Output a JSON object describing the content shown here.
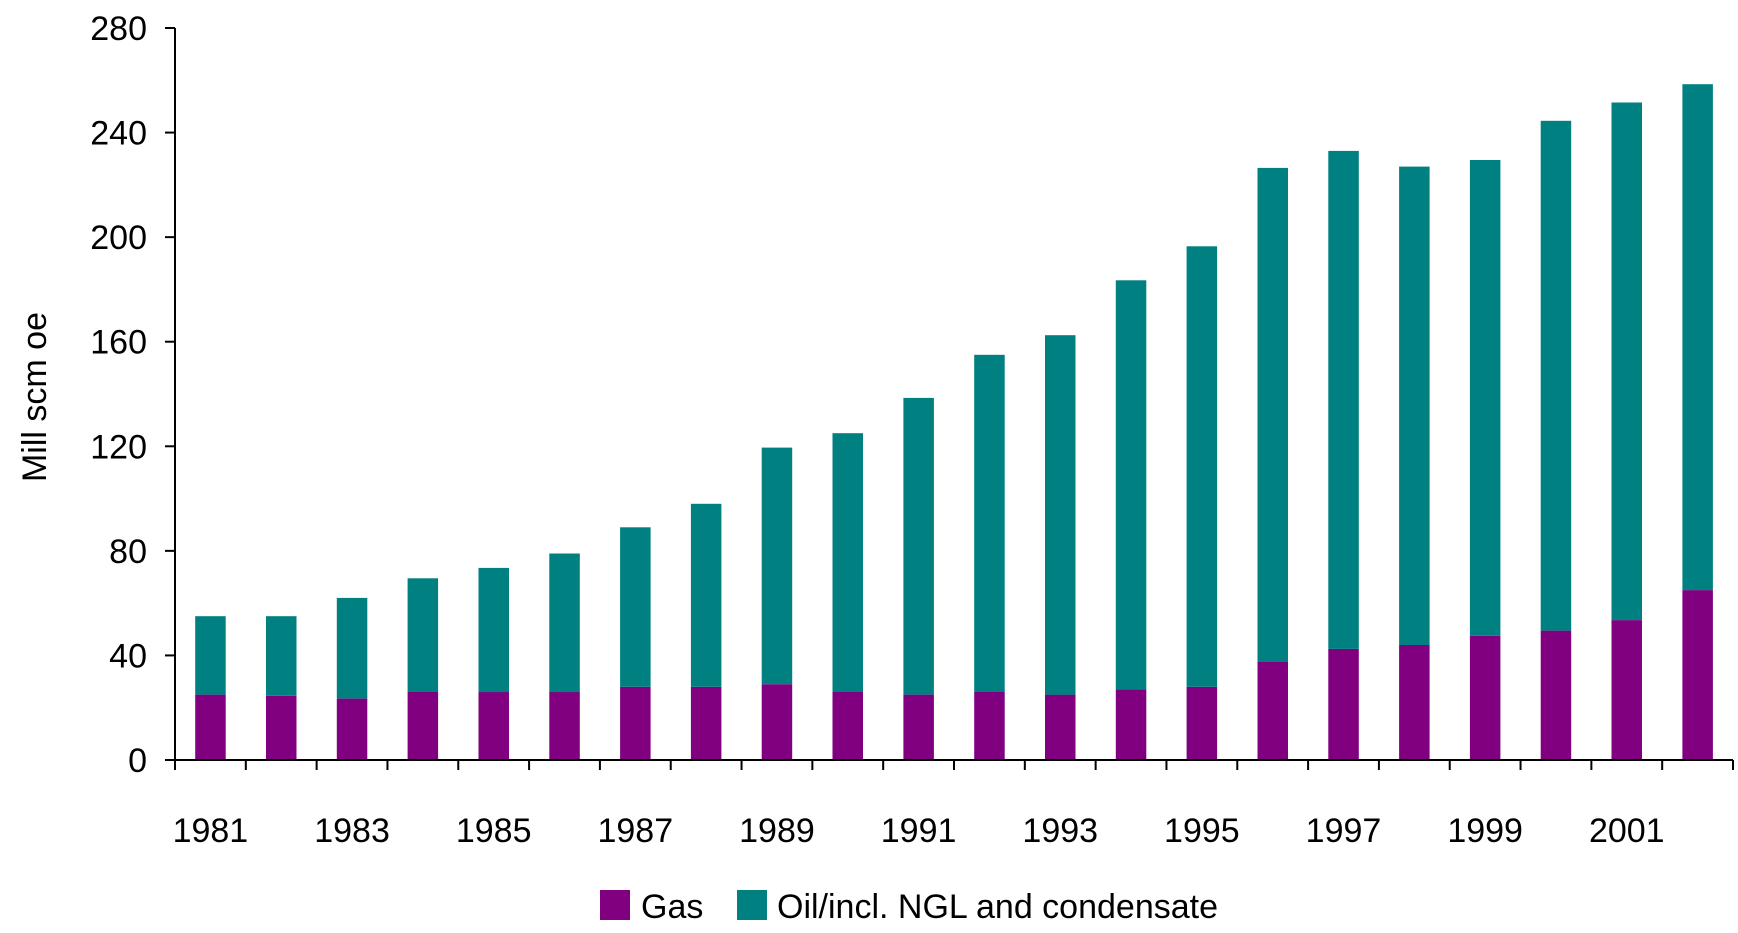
{
  "chart_data": {
    "type": "bar",
    "stacked": true,
    "title": "",
    "xlabel": "",
    "ylabel": "Mill scm oe",
    "ylim": [
      0,
      280
    ],
    "yticks": [
      0,
      40,
      80,
      120,
      160,
      200,
      240,
      280
    ],
    "categories": [
      "1981",
      "1982",
      "1983",
      "1984",
      "1985",
      "1986",
      "1987",
      "1988",
      "1989",
      "1990",
      "1991",
      "1992",
      "1993",
      "1994",
      "1995",
      "1996",
      "1997",
      "1998",
      "1999",
      "2000",
      "2001",
      "2002"
    ],
    "x_tick_labels": [
      "1981",
      "",
      "1983",
      "",
      "1985",
      "",
      "1987",
      "",
      "1989",
      "",
      "1991",
      "",
      "1993",
      "",
      "1995",
      "",
      "1997",
      "",
      "1999",
      "",
      "2001",
      ""
    ],
    "series": [
      {
        "name": "Gas",
        "color": "#800080",
        "values": [
          25,
          24.5,
          23.5,
          26,
          26,
          26,
          28,
          28,
          29,
          26,
          25,
          26,
          25,
          27,
          28,
          37.5,
          42.5,
          44,
          47.5,
          49.5,
          53.5,
          65
        ]
      },
      {
        "name": "Oil/incl. NGL and condensate",
        "color": "#008080",
        "values": [
          30,
          30.5,
          38.5,
          43.5,
          47.5,
          53,
          61,
          70,
          90.5,
          99,
          113.5,
          129,
          137.5,
          156.5,
          168.5,
          189,
          190.5,
          183,
          182,
          195,
          198,
          193.5
        ]
      }
    ],
    "grid": false,
    "legend_position": "bottom"
  }
}
